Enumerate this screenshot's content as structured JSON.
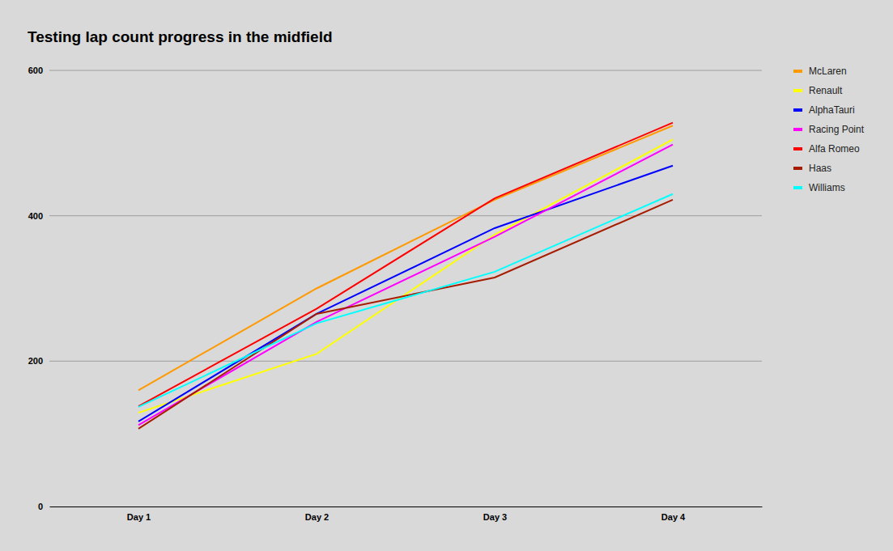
{
  "chart_data": {
    "type": "line",
    "title": "Testing lap count progress in the midfield",
    "categories": [
      "Day 1",
      "Day 2",
      "Day 3",
      "Day 4"
    ],
    "series": [
      {
        "name": "McLaren",
        "color": "#ff9900",
        "values": [
          160,
          300,
          422,
          524
        ]
      },
      {
        "name": "Renault",
        "color": "#ffff00",
        "values": [
          129,
          210,
          374,
          505
        ]
      },
      {
        "name": "AlphaTauri",
        "color": "#0000ff",
        "values": [
          117,
          265,
          383,
          469
        ]
      },
      {
        "name": "Racing Point",
        "color": "#ff00ff",
        "values": [
          112,
          254,
          371,
          498
        ]
      },
      {
        "name": "Alfa Romeo",
        "color": "#ff0000",
        "values": [
          138,
          272,
          424,
          528
        ]
      },
      {
        "name": "Haas",
        "color": "#a61c00",
        "values": [
          107,
          265,
          315,
          422
        ]
      },
      {
        "name": "Williams",
        "color": "#00ffff",
        "values": [
          137,
          252,
          323,
          430
        ]
      }
    ],
    "ylim": [
      0,
      600
    ],
    "yticks": [
      0,
      200,
      400,
      600
    ],
    "grid": true,
    "legend": "right"
  }
}
